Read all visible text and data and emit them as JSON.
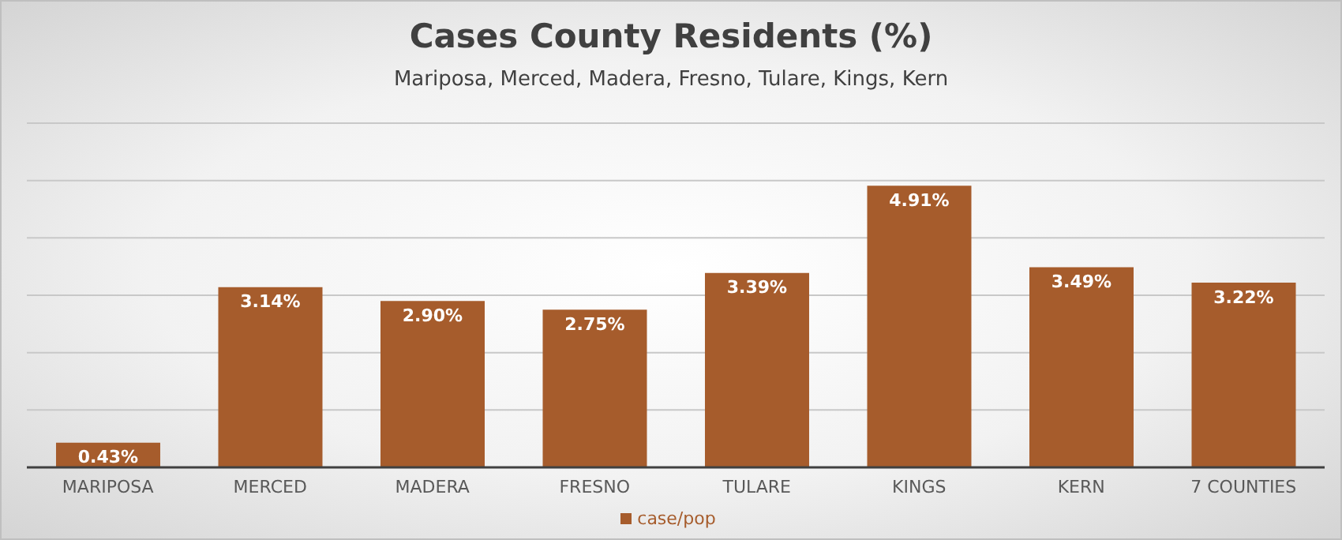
{
  "chart_data": {
    "type": "bar",
    "title": "Cases County Residents (%)",
    "subtitle": "Mariposa, Merced, Madera, Fresno, Tulare, Kings, Kern",
    "categories": [
      "MARIPOSA",
      "MERCED",
      "MADERA",
      "FRESNO",
      "TULARE",
      "KINGS",
      "KERN",
      "7 COUNTIES"
    ],
    "series": [
      {
        "name": "case/pop",
        "color": "#a65c2c",
        "values": [
          0.43,
          3.14,
          2.9,
          2.75,
          3.39,
          4.91,
          3.49,
          3.22
        ],
        "value_labels": [
          "0.43%",
          "3.14%",
          "2.90%",
          "2.75%",
          "3.39%",
          "4.91%",
          "3.49%",
          "3.22%"
        ]
      }
    ],
    "ylim": [
      0,
      6
    ],
    "yticks": [
      {
        "value": 0,
        "label": null
      },
      {
        "value": 1,
        "label": null
      },
      {
        "value": 2,
        "label": null
      },
      {
        "value": 3,
        "label": null
      },
      {
        "value": 4,
        "label": null
      },
      {
        "value": 5,
        "label": null
      },
      {
        "value": 6,
        "label": null
      }
    ],
    "tick_labels": "x",
    "grid": "y",
    "legend": "bottom"
  }
}
